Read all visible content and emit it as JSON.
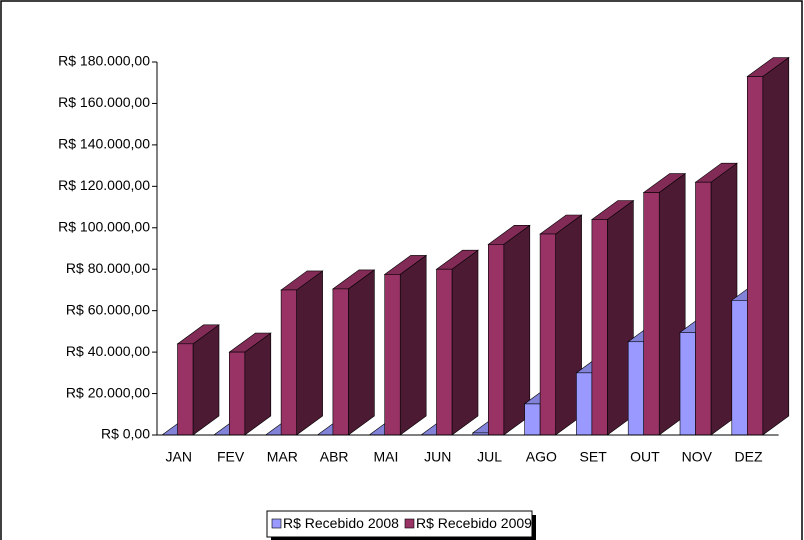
{
  "chart_data": {
    "type": "bar3d",
    "categories": [
      "JAN",
      "FEV",
      "MAR",
      "ABR",
      "MAI",
      "JUN",
      "JUL",
      "AGO",
      "SET",
      "OUT",
      "NOV",
      "DEZ"
    ],
    "series": [
      {
        "name": "R$ Recebido 2008",
        "color": "#9999ff",
        "values": [
          0,
          0,
          0,
          0,
          0,
          0,
          1000,
          15000,
          30000,
          45000,
          49500,
          65000
        ]
      },
      {
        "name": "R$ Recebido 2009",
        "color": "#993366",
        "values": [
          44000,
          40000,
          70000,
          70500,
          77500,
          80000,
          92000,
          97000,
          104000,
          117000,
          122000,
          173000
        ]
      }
    ],
    "ylim": [
      0,
      180000
    ],
    "yticks": [
      {
        "value": 0,
        "label": "R$ 0,00"
      },
      {
        "value": 20000,
        "label": "R$ 20.000,00"
      },
      {
        "value": 40000,
        "label": "R$ 40.000,00"
      },
      {
        "value": 60000,
        "label": "R$ 60.000,00"
      },
      {
        "value": 80000,
        "label": "R$ 80.000,00"
      },
      {
        "value": 100000,
        "label": "R$ 100.000,00"
      },
      {
        "value": 120000,
        "label": "R$ 120.000,00"
      },
      {
        "value": 140000,
        "label": "R$ 140.000,00"
      },
      {
        "value": 160000,
        "label": "R$ 160.000,00"
      },
      {
        "value": 180000,
        "label": "R$ 180.000,00"
      }
    ],
    "legend": "bottom"
  }
}
